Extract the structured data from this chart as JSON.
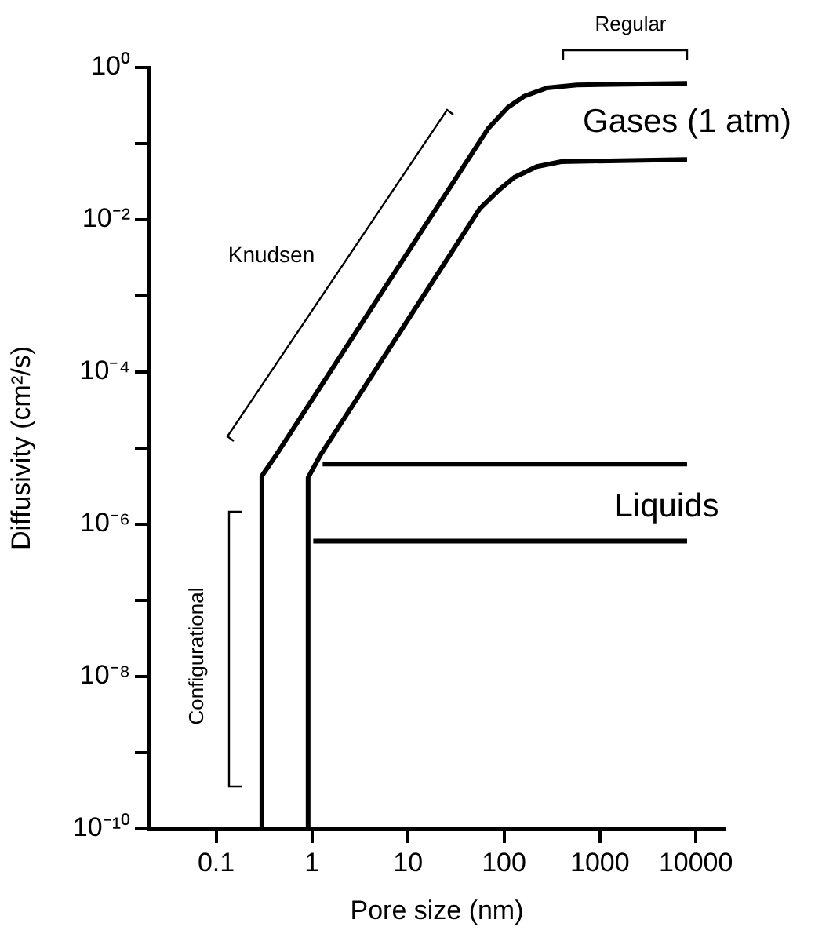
{
  "chart_data": {
    "type": "line",
    "xlabel": "Pore size (nm)",
    "ylabel": "Diffusivity (cm²/s)",
    "log": "xy",
    "grid": false,
    "legend": false,
    "xlim": [
      0.02,
      20000
    ],
    "xticks": [
      0.1,
      1,
      10,
      100,
      1000,
      10000
    ],
    "ylim": [
      1e-10,
      1
    ],
    "yticks": [
      {
        "value": 1e-10,
        "label": "10⁻¹⁰"
      },
      {
        "value": 1e-09,
        "label": null
      },
      {
        "value": 1e-08,
        "label": "10⁻⁸"
      },
      {
        "value": 1e-07,
        "label": null
      },
      {
        "value": 1e-06,
        "label": "10⁻⁶"
      },
      {
        "value": 1e-05,
        "label": null
      },
      {
        "value": 0.0001,
        "label": "10⁻⁴"
      },
      {
        "value": 0.001,
        "label": null
      },
      {
        "value": 0.01,
        "label": "10⁻²"
      },
      {
        "value": 0.1,
        "label": null
      },
      {
        "value": 1,
        "label": "10⁰"
      }
    ],
    "series": [
      {
        "color": "#000000",
        "x": [
          0.3,
          0.3,
          0.43,
          69,
          110,
          163,
          280,
          575,
          8100
        ],
        "values": [
          1e-10,
          4.3e-06,
          8.4e-06,
          0.16,
          0.3,
          0.42,
          0.54,
          0.59,
          0.62
        ]
      },
      {
        "color": "#000000",
        "x": [
          0.91,
          0.91,
          1.2,
          56,
          90,
          128,
          220,
          395,
          8100
        ],
        "values": [
          1e-10,
          4.1e-06,
          7.8e-06,
          0.014,
          0.025,
          0.036,
          0.05,
          0.058,
          0.062
        ]
      },
      {
        "color": "#000000",
        "x": [
          1.29,
          8100
        ],
        "values": [
          6.2e-06,
          6.2e-06
        ]
      },
      {
        "color": "#000000",
        "x": [
          1.03,
          8100
        ],
        "values": [
          6e-07,
          6e-07
        ]
      }
    ],
    "annotations": [
      "Gases (1 atm)",
      "Liquids",
      "Knudsen",
      "Configurational",
      "Regular"
    ]
  }
}
